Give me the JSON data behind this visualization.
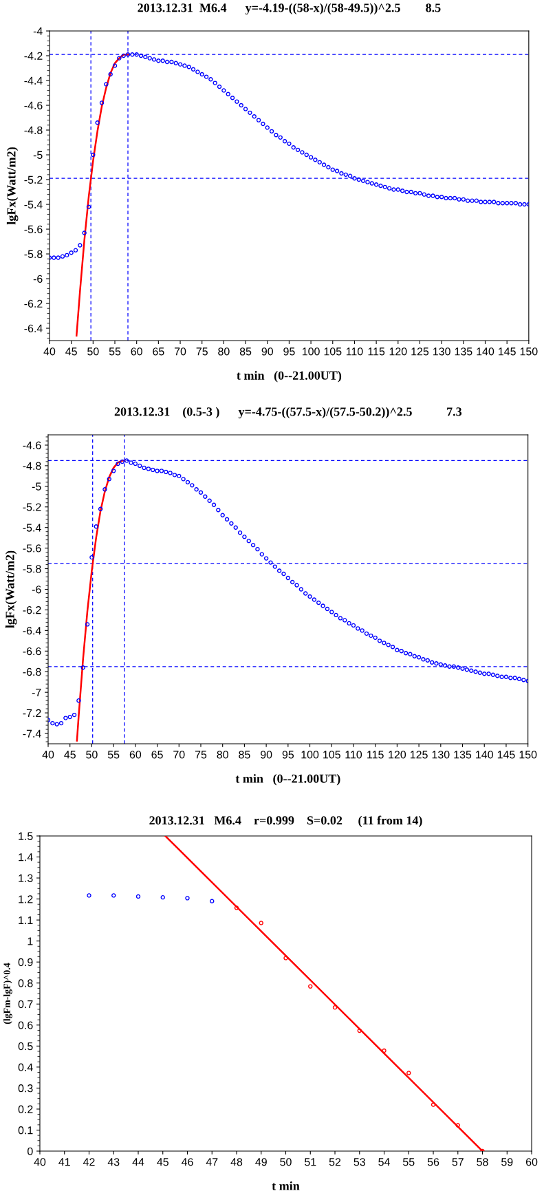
{
  "chart_data": [
    {
      "type": "scatter",
      "title": "2013.12.31  M6.4      y=-4.19-((58-x)/(58-49.5))^2.5        8.5",
      "xlabel": "t min   (0--21.00UT)",
      "ylabel": "lgFx(Watt/m2)",
      "xlim": [
        40,
        150
      ],
      "xticks": [
        40,
        45,
        50,
        55,
        60,
        65,
        70,
        75,
        80,
        85,
        90,
        95,
        100,
        105,
        110,
        115,
        120,
        125,
        130,
        135,
        140,
        145,
        150
      ],
      "ylim": [
        -6.5,
        -4
      ],
      "yticks": [
        -4,
        -4.2,
        -4.4,
        -4.6,
        -4.8,
        -5,
        -5.2,
        -5.4,
        -5.6,
        -5.8,
        -6,
        -6.2,
        -6.4
      ],
      "grid": false,
      "series": [
        {
          "color": "#0000ff",
          "marker": "circle",
          "x": [
            40,
            41,
            42,
            43,
            44,
            45,
            46,
            47,
            48,
            49,
            50,
            51,
            52,
            53,
            54,
            55,
            56,
            57,
            58,
            59,
            60,
            61,
            62,
            63,
            64,
            65,
            66,
            67,
            68,
            69,
            70,
            71,
            72,
            73,
            74,
            75,
            76,
            77,
            78,
            79,
            80,
            81,
            82,
            83,
            84,
            85,
            86,
            87,
            88,
            89,
            90,
            91,
            92,
            93,
            94,
            95,
            96,
            97,
            98,
            99,
            100,
            101,
            102,
            103,
            104,
            105,
            106,
            107,
            108,
            109,
            110,
            111,
            112,
            113,
            114,
            115,
            116,
            117,
            118,
            119,
            120,
            121,
            122,
            123,
            124,
            125,
            126,
            127,
            128,
            129,
            130,
            131,
            132,
            133,
            134,
            135,
            136,
            137,
            138,
            139,
            140,
            141,
            142,
            143,
            144,
            145,
            146,
            147,
            148,
            149,
            150
          ],
          "values": [
            -5.83,
            -5.83,
            -5.83,
            -5.82,
            -5.81,
            -5.79,
            -5.77,
            -5.73,
            -5.63,
            -5.42,
            -5.0,
            -4.74,
            -4.58,
            -4.43,
            -4.35,
            -4.28,
            -4.22,
            -4.2,
            -4.19,
            -4.19,
            -4.19,
            -4.2,
            -4.21,
            -4.22,
            -4.23,
            -4.24,
            -4.24,
            -4.25,
            -4.25,
            -4.26,
            -4.27,
            -4.28,
            -4.29,
            -4.31,
            -4.33,
            -4.35,
            -4.37,
            -4.39,
            -4.42,
            -4.45,
            -4.48,
            -4.51,
            -4.54,
            -4.57,
            -4.6,
            -4.63,
            -4.66,
            -4.69,
            -4.72,
            -4.75,
            -4.78,
            -4.81,
            -4.84,
            -4.86,
            -4.89,
            -4.91,
            -4.94,
            -4.96,
            -4.98,
            -5.0,
            -5.02,
            -5.04,
            -5.06,
            -5.08,
            -5.1,
            -5.12,
            -5.13,
            -5.15,
            -5.16,
            -5.17,
            -5.19,
            -5.2,
            -5.21,
            -5.22,
            -5.23,
            -5.24,
            -5.25,
            -5.26,
            -5.27,
            -5.28,
            -5.28,
            -5.29,
            -5.3,
            -5.3,
            -5.31,
            -5.31,
            -5.32,
            -5.33,
            -5.33,
            -5.34,
            -5.34,
            -5.35,
            -5.35,
            -5.35,
            -5.36,
            -5.36,
            -5.37,
            -5.37,
            -5.37,
            -5.38,
            -5.38,
            -5.38,
            -5.38,
            -5.39,
            -5.39,
            -5.39,
            -5.39,
            -5.39,
            -5.4,
            -5.4,
            -5.4
          ]
        },
        {
          "type": "line",
          "color": "#ff0000",
          "line_style": "solid",
          "x": [
            46.2,
            47,
            48,
            49,
            50,
            51,
            52,
            53,
            54,
            55,
            56,
            57,
            58
          ],
          "values": [
            -6.46,
            -6.1,
            -5.69,
            -5.34,
            -5.05,
            -4.81,
            -4.61,
            -4.46,
            -4.34,
            -4.26,
            -4.22,
            -4.19,
            -4.19
          ]
        }
      ],
      "ref_lines": [
        {
          "axis": "x",
          "value": 49.5,
          "color": "#0000ff",
          "line_style": "dashed"
        },
        {
          "axis": "x",
          "value": 58,
          "color": "#0000ff",
          "line_style": "dashed"
        },
        {
          "axis": "y",
          "value": -4.19,
          "color": "#0000ff",
          "line_style": "dashed"
        },
        {
          "axis": "y",
          "value": -5.19,
          "color": "#0000ff",
          "line_style": "dashed"
        }
      ]
    },
    {
      "type": "scatter",
      "title": "2013.12.31    (0.5-3 )      y=-4.75-((57.5-x)/(57.5-50.2))^2.5           7.3",
      "xlabel": "t min   (0--21.00UT)",
      "ylabel": "lgFx(Watt/m2)",
      "xlim": [
        40,
        150
      ],
      "xticks": [
        40,
        45,
        50,
        55,
        60,
        65,
        70,
        75,
        80,
        85,
        90,
        95,
        100,
        105,
        110,
        115,
        120,
        125,
        130,
        135,
        140,
        145,
        150
      ],
      "ylim": [
        -7.5,
        -4.5
      ],
      "yticks": [
        -4.6,
        -4.8,
        -5,
        -5.2,
        -5.4,
        -5.6,
        -5.8,
        -6,
        -6.2,
        -6.4,
        -6.6,
        -6.8,
        -7,
        -7.2,
        -7.4
      ],
      "grid": false,
      "series": [
        {
          "color": "#0000ff",
          "marker": "circle",
          "x": [
            40,
            41,
            42,
            43,
            44,
            45,
            46,
            47,
            48,
            49,
            50,
            51,
            52,
            53,
            54,
            55,
            56,
            57,
            58,
            59,
            60,
            61,
            62,
            63,
            64,
            65,
            66,
            67,
            68,
            69,
            70,
            71,
            72,
            73,
            74,
            75,
            76,
            77,
            78,
            79,
            80,
            81,
            82,
            83,
            84,
            85,
            86,
            87,
            88,
            89,
            90,
            91,
            92,
            93,
            94,
            95,
            96,
            97,
            98,
            99,
            100,
            101,
            102,
            103,
            104,
            105,
            106,
            107,
            108,
            109,
            110,
            111,
            112,
            113,
            114,
            115,
            116,
            117,
            118,
            119,
            120,
            121,
            122,
            123,
            124,
            125,
            126,
            127,
            128,
            129,
            130,
            131,
            132,
            133,
            134,
            135,
            136,
            137,
            138,
            139,
            140,
            141,
            142,
            143,
            144,
            145,
            146,
            147,
            148,
            149,
            150
          ],
          "values": [
            -7.27,
            -7.3,
            -7.31,
            -7.3,
            -7.25,
            -7.24,
            -7.22,
            -7.08,
            -6.76,
            -6.34,
            -5.69,
            -5.39,
            -5.22,
            -5.03,
            -4.93,
            -4.85,
            -4.78,
            -4.76,
            -4.75,
            -4.77,
            -4.78,
            -4.8,
            -4.82,
            -4.83,
            -4.84,
            -4.85,
            -4.85,
            -4.86,
            -4.87,
            -4.89,
            -4.9,
            -4.93,
            -4.96,
            -4.99,
            -5.03,
            -5.06,
            -5.1,
            -5.14,
            -5.18,
            -5.23,
            -5.28,
            -5.32,
            -5.36,
            -5.4,
            -5.45,
            -5.49,
            -5.53,
            -5.57,
            -5.61,
            -5.66,
            -5.7,
            -5.74,
            -5.78,
            -5.82,
            -5.85,
            -5.89,
            -5.93,
            -5.96,
            -6.0,
            -6.04,
            -6.07,
            -6.1,
            -6.13,
            -6.16,
            -6.19,
            -6.22,
            -6.25,
            -6.28,
            -6.3,
            -6.33,
            -6.35,
            -6.38,
            -6.4,
            -6.43,
            -6.45,
            -6.47,
            -6.5,
            -6.52,
            -6.54,
            -6.56,
            -6.59,
            -6.6,
            -6.62,
            -6.63,
            -6.65,
            -6.66,
            -6.68,
            -6.69,
            -6.71,
            -6.72,
            -6.73,
            -6.74,
            -6.75,
            -6.75,
            -6.76,
            -6.77,
            -6.78,
            -6.79,
            -6.8,
            -6.81,
            -6.82,
            -6.82,
            -6.83,
            -6.84,
            -6.85,
            -6.85,
            -6.86,
            -6.86,
            -6.87,
            -6.88,
            -6.89
          ]
        },
        {
          "type": "line",
          "color": "#ff0000",
          "line_style": "solid",
          "x": [
            46.6,
            47,
            48,
            49,
            50,
            51,
            52,
            53,
            54,
            55,
            56,
            57,
            57.5
          ],
          "values": [
            -7.47,
            -7.23,
            -6.68,
            -6.21,
            -5.82,
            -5.5,
            -5.24,
            -5.05,
            -4.91,
            -4.82,
            -4.77,
            -4.75,
            -4.75
          ]
        }
      ],
      "ref_lines": [
        {
          "axis": "x",
          "value": 50.2,
          "color": "#0000ff",
          "line_style": "dashed"
        },
        {
          "axis": "x",
          "value": 57.5,
          "color": "#0000ff",
          "line_style": "dashed"
        },
        {
          "axis": "y",
          "value": -4.75,
          "color": "#0000ff",
          "line_style": "dashed"
        },
        {
          "axis": "y",
          "value": -5.75,
          "color": "#0000ff",
          "line_style": "dashed"
        },
        {
          "axis": "y",
          "value": -6.75,
          "color": "#0000ff",
          "line_style": "dashed"
        }
      ]
    },
    {
      "type": "scatter",
      "title": "2013.12.31   M6.4    r=0.999    S=0.02     (11 from 14)",
      "xlabel": "t min",
      "ylabel": "(lgFm-lgF)^0.4",
      "xlim": [
        40,
        60
      ],
      "xticks": [
        40,
        41,
        42,
        43,
        44,
        45,
        46,
        47,
        48,
        49,
        50,
        51,
        52,
        53,
        54,
        55,
        56,
        57,
        58,
        59,
        60
      ],
      "ylim": [
        0,
        1.5
      ],
      "yticks": [
        0,
        0.1,
        0.2,
        0.3,
        0.4,
        0.5,
        0.6,
        0.7,
        0.8,
        0.9,
        1,
        1.1,
        1.2,
        1.3,
        1.4,
        1.5
      ],
      "grid": false,
      "series": [
        {
          "color": "#0000ff",
          "marker": "circle",
          "x": [
            42,
            43,
            44,
            45,
            46,
            47
          ],
          "values": [
            1.217,
            1.217,
            1.212,
            1.208,
            1.204,
            1.19
          ]
        },
        {
          "color": "#ff0000",
          "marker": "circle",
          "x": [
            48,
            49,
            50,
            51,
            52,
            53,
            54,
            55,
            56,
            57,
            58
          ],
          "values": [
            1.158,
            1.086,
            0.919,
            0.784,
            0.684,
            0.573,
            0.478,
            0.372,
            0.221,
            0.123,
            0
          ]
        },
        {
          "type": "line",
          "color": "#ff0000",
          "line_style": "solid",
          "x": [
            45.1,
            58
          ],
          "values": [
            1.5,
            0
          ]
        }
      ]
    }
  ]
}
